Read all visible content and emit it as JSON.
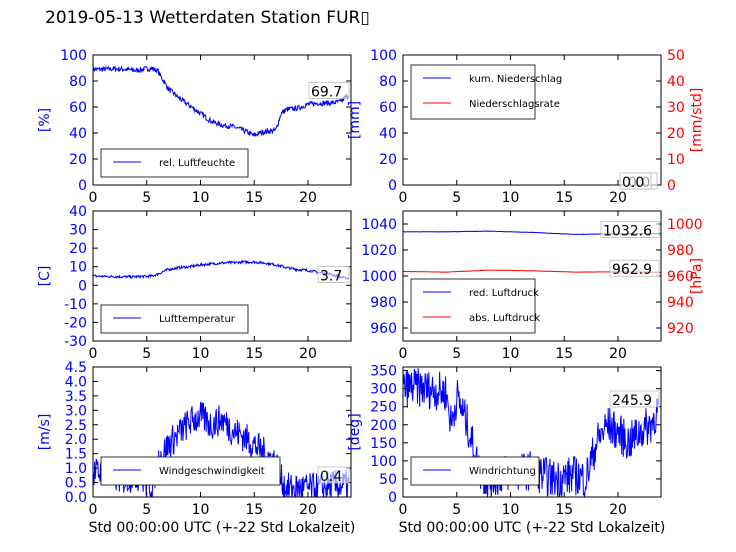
{
  "figure_title": "2019-05-13 Wetterdaten Station FUR▯",
  "colors": {
    "primary": "#0000ff",
    "secondary": "#ff0000",
    "axis": "#000000"
  },
  "chart_data": [
    {
      "id": "humidity",
      "type": "line",
      "ylabel": "[%]",
      "ylabel_color": "#0000ff",
      "xlim": [
        0,
        24
      ],
      "ylim": [
        0,
        100
      ],
      "xticks": [
        0,
        5,
        10,
        15,
        20
      ],
      "yticks": [
        0,
        20,
        40,
        60,
        80,
        100
      ],
      "tick_color": "#0000ff",
      "legend_position": "lower-left",
      "last_value_labels": [
        "69.7"
      ],
      "series": [
        {
          "name": "rel. Luftfeuchte",
          "color": "#0000ff",
          "x": [
            0,
            1,
            2,
            3,
            4,
            5,
            5.5,
            6,
            7,
            8,
            9,
            10,
            11,
            12,
            13,
            14,
            15,
            15.5,
            16,
            17,
            17.5,
            18,
            19,
            20,
            21,
            22,
            23,
            23.8
          ],
          "y": [
            89,
            89,
            89.5,
            89,
            88,
            89.5,
            89.5,
            88,
            74,
            67,
            61,
            55,
            49,
            46,
            45,
            42,
            38,
            40,
            41,
            42,
            55,
            58,
            59,
            62,
            63,
            63,
            64,
            69.7
          ],
          "noise": 2.0
        }
      ]
    },
    {
      "id": "precipitation",
      "type": "line",
      "ylabel": "[mm]",
      "ylabel_color": "#0000ff",
      "y2label": "[mm/std]",
      "y2label_color": "#ff0000",
      "xlim": [
        0,
        24
      ],
      "ylim": [
        0,
        100
      ],
      "y2lim": [
        0,
        50
      ],
      "xticks": [
        0,
        5,
        10,
        15,
        20
      ],
      "yticks": [
        0,
        20,
        40,
        60,
        80,
        100
      ],
      "y2ticks": [
        0,
        10,
        20,
        30,
        40,
        50
      ],
      "tick_color": "#0000ff",
      "tick2_color": "#ff0000",
      "legend_position": "upper-left",
      "last_value_labels": [
        "0.0",
        "0.0"
      ],
      "series": [
        {
          "name": "kum. Niederschlag",
          "color": "#0000ff",
          "axis": "left",
          "x": [
            0,
            24
          ],
          "y": [
            0,
            0
          ],
          "noise": 0
        },
        {
          "name": "Niederschlagsrate",
          "color": "#ff0000",
          "axis": "right",
          "x": [
            0,
            24
          ],
          "y": [
            0,
            0
          ],
          "noise": 0
        }
      ]
    },
    {
      "id": "temperature",
      "type": "line",
      "ylabel": "[C]",
      "ylabel_color": "#0000ff",
      "xlim": [
        0,
        24
      ],
      "ylim": [
        -30,
        40
      ],
      "xticks": [
        0,
        5,
        10,
        15,
        20
      ],
      "yticks": [
        -30,
        -20,
        -10,
        0,
        10,
        20,
        30,
        40
      ],
      "tick_color": "#0000ff",
      "legend_position": "lower-left",
      "last_value_labels": [
        "3.7"
      ],
      "series": [
        {
          "name": "Lufttemperatur",
          "color": "#0000ff",
          "x": [
            0,
            1,
            2,
            3,
            4,
            5,
            5.5,
            6,
            7,
            8,
            9,
            10,
            11,
            12,
            13,
            14,
            15,
            16,
            17,
            18,
            19,
            20,
            21,
            22,
            23,
            23.8
          ],
          "y": [
            5,
            4.8,
            4.7,
            4.6,
            4.6,
            4.8,
            5,
            6,
            8.5,
            9.5,
            10,
            11,
            11.5,
            12,
            12.2,
            12.5,
            12.5,
            12,
            11,
            9.5,
            8.5,
            8,
            7,
            6,
            4.5,
            3.7
          ],
          "noise": 0.7
        }
      ]
    },
    {
      "id": "pressure",
      "type": "line",
      "ylabel": "",
      "y2label": "[hPa]",
      "y2label_color": "#ff0000",
      "xlim": [
        0,
        24
      ],
      "ylim": [
        950,
        1050
      ],
      "y2lim": [
        910,
        1010
      ],
      "xticks": [
        0,
        5,
        10,
        15,
        20
      ],
      "yticks": [
        960,
        980,
        1000,
        1020,
        1040
      ],
      "y2ticks": [
        920,
        940,
        960,
        980,
        1000
      ],
      "tick_color": "#0000ff",
      "tick2_color": "#ff0000",
      "legend_position": "lower-left",
      "last_value_labels": [
        "1032.6",
        "962.9"
      ],
      "series": [
        {
          "name": "red. Luftdruck",
          "color": "#0000ff",
          "axis": "left",
          "x": [
            0,
            4,
            8,
            12,
            16,
            20,
            24
          ],
          "y": [
            1034,
            1034,
            1034.5,
            1033.5,
            1032,
            1032.5,
            1032.6
          ],
          "noise": 0.15
        },
        {
          "name": "abs. Luftdruck",
          "color": "#ff0000",
          "axis": "right",
          "x": [
            0,
            4,
            8,
            12,
            16,
            20,
            24
          ],
          "y": [
            963.5,
            963,
            964.5,
            964,
            963,
            963.2,
            962.9
          ],
          "noise": 0.1
        }
      ]
    },
    {
      "id": "windspeed",
      "type": "line",
      "ylabel": "[m/s]",
      "ylabel_color": "#0000ff",
      "xlabel": "Std 00:00:00 UTC (+-22 Std Lokalzeit)",
      "xlim": [
        0,
        24
      ],
      "ylim": [
        0,
        4.5
      ],
      "xticks": [
        0,
        5,
        10,
        15,
        20
      ],
      "yticks": [
        0.0,
        0.5,
        1.0,
        1.5,
        2.0,
        2.5,
        3.0,
        3.5,
        4.0,
        4.5
      ],
      "tick_color": "#0000ff",
      "legend_position": "lower-left",
      "last_value_labels": [
        "0.4"
      ],
      "series": [
        {
          "name": "Windgeschwindigkeit",
          "color": "#0000ff",
          "x": [
            0,
            1,
            2,
            3,
            4,
            5,
            5.5,
            6,
            6.5,
            7,
            8,
            9,
            10,
            11,
            12,
            13,
            14,
            15,
            16,
            17,
            17.5,
            18,
            19,
            20,
            21,
            22,
            23,
            23.8
          ],
          "y": [
            0.8,
            0.9,
            0.7,
            0.6,
            0.8,
            0.5,
            0.4,
            1.2,
            1.5,
            1.8,
            2.2,
            2.6,
            2.8,
            2.5,
            2.7,
            2.3,
            2.1,
            1.8,
            1.5,
            1.2,
            0.6,
            0.3,
            0.3,
            0.3,
            0.3,
            0.4,
            0.4,
            0.4
          ],
          "noise": 0.55
        }
      ]
    },
    {
      "id": "winddirection",
      "type": "line",
      "ylabel": "[deg]",
      "ylabel_color": "#0000ff",
      "xlabel": "Std 00:00:00 UTC (+-22 Std Lokalzeit)",
      "xlim": [
        0,
        24
      ],
      "ylim": [
        0,
        360
      ],
      "xticks": [
        0,
        5,
        10,
        15,
        20
      ],
      "yticks": [
        0,
        50,
        100,
        150,
        200,
        250,
        300,
        350
      ],
      "tick_color": "#0000ff",
      "legend_position": "lower-left",
      "last_value_labels": [
        "245.9"
      ],
      "series": [
        {
          "name": "Windrichtung",
          "color": "#0000ff",
          "x": [
            0,
            1,
            2,
            3,
            4,
            4.5,
            5,
            6,
            7,
            8,
            9,
            10,
            11,
            12,
            13,
            14,
            15,
            16,
            17,
            18,
            19,
            20,
            21,
            22,
            23,
            23.8
          ],
          "y": [
            300,
            305,
            300,
            295,
            290,
            200,
            280,
            200,
            80,
            40,
            60,
            70,
            70,
            75,
            60,
            50,
            55,
            60,
            50,
            150,
            200,
            180,
            150,
            180,
            200,
            245.9
          ],
          "noise": 55
        }
      ]
    }
  ]
}
